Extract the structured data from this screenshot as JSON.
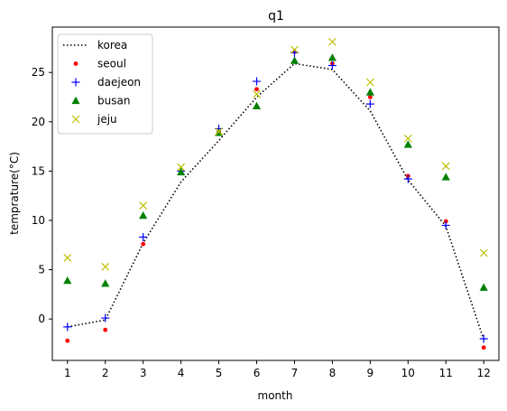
{
  "chart_data": {
    "type": "scatter",
    "title": "q1",
    "xlabel": "month",
    "ylabel": "temprature(°C)",
    "x": [
      1,
      2,
      3,
      4,
      5,
      6,
      7,
      8,
      9,
      10,
      11,
      12
    ],
    "xlim": [
      0.6,
      12.4
    ],
    "ylim": [
      -4.2,
      29.6
    ],
    "xticks": [
      1,
      2,
      3,
      4,
      5,
      6,
      7,
      8,
      9,
      10,
      11,
      12
    ],
    "yticks": [
      0,
      5,
      10,
      15,
      20,
      25
    ],
    "grid": false,
    "legend_position": "top-left",
    "series": [
      {
        "name": "korea",
        "marker": "dotted-line",
        "color": "#000000",
        "values": [
          -0.8,
          -0.1,
          7.7,
          13.9,
          18.1,
          22.5,
          25.9,
          25.3,
          21.1,
          14.1,
          9.4,
          -2.1
        ]
      },
      {
        "name": "seoul",
        "marker": "dot",
        "color": "#ff0000",
        "values": [
          -2.2,
          -1.1,
          7.6,
          14.9,
          19.0,
          23.3,
          27.1,
          25.9,
          22.5,
          14.5,
          9.9,
          -2.9
        ]
      },
      {
        "name": "daejeon",
        "marker": "plus",
        "color": "#0000ff",
        "values": [
          -0.8,
          0.1,
          8.3,
          15.0,
          19.3,
          24.1,
          27.0,
          25.7,
          21.8,
          14.2,
          9.5,
          -2.0
        ]
      },
      {
        "name": "busan",
        "marker": "triangle",
        "color": "#008000",
        "values": [
          3.9,
          3.6,
          10.5,
          14.9,
          18.9,
          21.6,
          26.2,
          26.5,
          23.0,
          17.7,
          14.4,
          3.2
        ]
      },
      {
        "name": "jeju",
        "marker": "x",
        "color": "#bfbf00",
        "values": [
          6.2,
          5.3,
          11.5,
          15.4,
          19.0,
          22.8,
          27.3,
          28.1,
          24.0,
          18.3,
          15.5,
          6.7
        ]
      }
    ]
  }
}
